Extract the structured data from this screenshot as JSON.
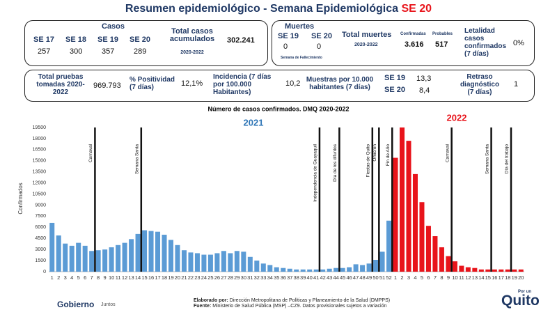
{
  "title": {
    "text": "Resumen epidemiológico - Semana Epidemiológica",
    "highlight": "SE 20"
  },
  "cases": {
    "heading": "Casos",
    "weeks": [
      {
        "label": "SE 17",
        "value": "257"
      },
      {
        "label": "SE 18",
        "value": "300"
      },
      {
        "label": "SE 19",
        "value": "357"
      },
      {
        "label": "SE 20",
        "value": "289"
      }
    ],
    "total_label": "Total casos acumulados",
    "total_period": "2020-2022",
    "total": "302.241"
  },
  "deaths": {
    "heading": "Muertes",
    "weeks": [
      {
        "label": "SE 19",
        "value": "0"
      },
      {
        "label": "SE 20",
        "value": "0"
      }
    ],
    "weeks_note": "Semana de Fallecimiento",
    "total_label": "Total muertes",
    "total_period": "2020-2022",
    "confirmed_label": "Confirmadas",
    "confirmed": "3.616",
    "probable_label": "Probables",
    "probable": "517",
    "lethality_label": "Letalidad casos confirmados (7 días)",
    "lethality": "0%"
  },
  "indicators": {
    "tests_label": "Total pruebas tomadas 2020-2022",
    "tests": "969.793",
    "positivity_label": "% Positividad (7 días)",
    "positivity": "12,1%",
    "incidence_label": "Incidencia (7 días por 100.000 Habitantes)",
    "incidence": "10,2",
    "samples_label": "Muestras por 10.000 habitantes (7 días)",
    "samples": [
      {
        "label": "SE 19",
        "value": "13,3"
      },
      {
        "label": "SE 20",
        "value": "8,4"
      }
    ],
    "delay_label": "Retraso diagnóstico (7 días)",
    "delay": "1"
  },
  "chart_data": {
    "type": "bar",
    "title": "Número de casos confirmados. DMQ 2020-2022",
    "y_label": "Confirmados",
    "categories": [
      "1",
      "2",
      "3",
      "4",
      "5",
      "6",
      "7",
      "8",
      "9",
      "10",
      "11",
      "12",
      "13",
      "14",
      "15",
      "16",
      "17",
      "18",
      "19",
      "20",
      "21",
      "22",
      "23",
      "24",
      "25",
      "26",
      "27",
      "28",
      "29",
      "30",
      "31",
      "32",
      "33",
      "34",
      "35",
      "36",
      "37",
      "38",
      "39",
      "40",
      "41",
      "42",
      "43",
      "44",
      "45",
      "46",
      "47",
      "48",
      "49",
      "50",
      "51",
      "52",
      "1",
      "2",
      "3",
      "4",
      "5",
      "6",
      "7",
      "8",
      "9",
      "10",
      "11",
      "12",
      "13",
      "14",
      "15",
      "16",
      "17",
      "18",
      "19",
      "20"
    ],
    "series": [
      {
        "name": "2021",
        "color": "#5b9bd5",
        "values": [
          6600,
          4900,
          3800,
          3500,
          3900,
          3500,
          2800,
          2900,
          3000,
          3300,
          3600,
          3900,
          4400,
          5100,
          5600,
          5500,
          5400,
          5000,
          4300,
          3600,
          2900,
          2600,
          2500,
          2300,
          2300,
          2500,
          2800,
          2500,
          2800,
          2700,
          2000,
          1500,
          1100,
          900,
          600,
          500,
          400,
          300,
          300,
          300,
          300,
          300,
          400,
          500,
          500,
          600,
          1000,
          900,
          1100,
          1600,
          2700,
          6900,
          null,
          null,
          null,
          null,
          null,
          null,
          null,
          null,
          null,
          null,
          null,
          null,
          null,
          null,
          null,
          null,
          null,
          null,
          null,
          null
        ]
      },
      {
        "name": "2022",
        "color": "#e8141b",
        "values": [
          null,
          null,
          null,
          null,
          null,
          null,
          null,
          null,
          null,
          null,
          null,
          null,
          null,
          null,
          null,
          null,
          null,
          null,
          null,
          null,
          null,
          null,
          null,
          null,
          null,
          null,
          null,
          null,
          null,
          null,
          null,
          null,
          null,
          null,
          null,
          null,
          null,
          null,
          null,
          null,
          null,
          null,
          null,
          null,
          null,
          null,
          null,
          null,
          null,
          null,
          null,
          null,
          15400,
          19500,
          17700,
          13200,
          9400,
          6200,
          4800,
          3300,
          2100,
          1400,
          800,
          600,
          500,
          300,
          300,
          300,
          300,
          300,
          300,
          300
        ]
      }
    ],
    "ylim": [
      0,
      19500
    ],
    "yticks": [
      0,
      1500,
      3000,
      4500,
      6000,
      7500,
      9000,
      10500,
      12000,
      13500,
      15000,
      16500,
      18000,
      19500
    ],
    "grid": false,
    "events": [
      {
        "label": "Carnaval",
        "at": 6
      },
      {
        "label": "Semana Santa",
        "at": 13
      },
      {
        "label": "Independencia de Guayaquil",
        "at": 40
      },
      {
        "label": "Día de los difuntos",
        "at": 43
      },
      {
        "label": "Fiestas de Quito",
        "at": 48
      },
      {
        "label": "Omicron",
        "at": 49
      },
      {
        "label": "Fin de Año",
        "at": 51
      },
      {
        "label": "Carnaval",
        "at": 60
      },
      {
        "label": "Semana Santa",
        "at": 66
      },
      {
        "label": "Día del trabajo",
        "at": 69
      }
    ]
  },
  "footer": {
    "made_by_label": "Elaborado por:",
    "made_by": "Dirección Metropolitana de Políticas y Planeamiento de la Salud (DMPPS)",
    "source_label": "Fuente:",
    "source": "Ministerio de Salud Pública (MSP) –CZ9. Datos provisionales sujetos a variación"
  },
  "logos": {
    "gobierno": "Gobierno",
    "juntos": "Juntos",
    "por_un": "Por un",
    "quito": "Quito"
  }
}
